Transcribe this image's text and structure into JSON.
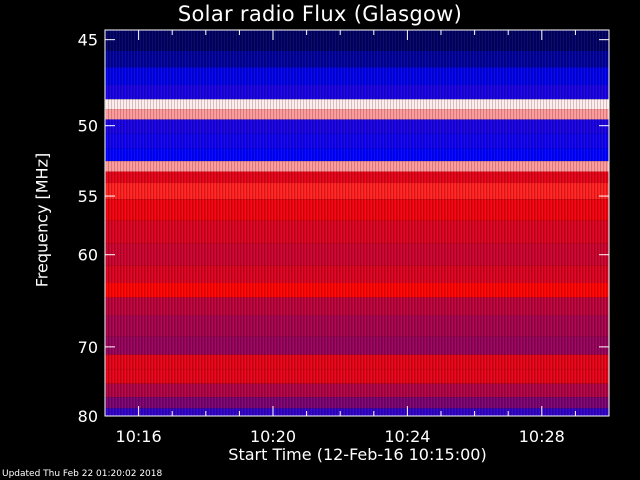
{
  "chart_data": {
    "type": "heatmap",
    "title": "Solar radio Flux (Glasgow)",
    "xlabel": "Start Time (12-Feb-16 10:15:00)",
    "ylabel": "Frequency [MHz]",
    "x_ticks": [
      "10:16",
      "10:20",
      "10:24",
      "10:28"
    ],
    "x_tick_minutes": [
      1,
      5,
      9,
      13
    ],
    "xlim_minutes": [
      0,
      15
    ],
    "y_ticks": [
      45,
      50,
      55,
      60,
      70,
      80
    ],
    "ylim_mhz": [
      44.5,
      80
    ],
    "y_scale": "reciprocal",
    "colormap": [
      "#00003c",
      "#0000ff",
      "#7a0070",
      "#ff0000",
      "#ffffff"
    ],
    "rows": [
      {
        "f": 45.2,
        "level": 0.05
      },
      {
        "f": 46.0,
        "level": 0.12
      },
      {
        "f": 47.0,
        "level": 0.22
      },
      {
        "f": 48.0,
        "level": 0.3
      },
      {
        "f": 48.7,
        "level": 0.98
      },
      {
        "f": 49.2,
        "level": 0.9
      },
      {
        "f": 50.0,
        "level": 0.3
      },
      {
        "f": 51.0,
        "level": 0.28
      },
      {
        "f": 52.0,
        "level": 0.25
      },
      {
        "f": 52.8,
        "level": 0.9
      },
      {
        "f": 53.5,
        "level": 0.7
      },
      {
        "f": 54.5,
        "level": 0.78
      },
      {
        "f": 56.0,
        "level": 0.72
      },
      {
        "f": 58.0,
        "level": 0.68
      },
      {
        "f": 60.0,
        "level": 0.65
      },
      {
        "f": 62.0,
        "level": 0.68
      },
      {
        "f": 63.5,
        "level": 0.75
      },
      {
        "f": 65.0,
        "level": 0.62
      },
      {
        "f": 67.5,
        "level": 0.58
      },
      {
        "f": 70.0,
        "level": 0.55
      },
      {
        "f": 72.0,
        "level": 0.7
      },
      {
        "f": 74.0,
        "level": 0.7
      },
      {
        "f": 76.0,
        "level": 0.6
      },
      {
        "f": 78.0,
        "level": 0.5
      },
      {
        "f": 79.5,
        "level": 0.35
      }
    ]
  },
  "footer": "Updated Thu Feb 22 01:20:02 2018"
}
